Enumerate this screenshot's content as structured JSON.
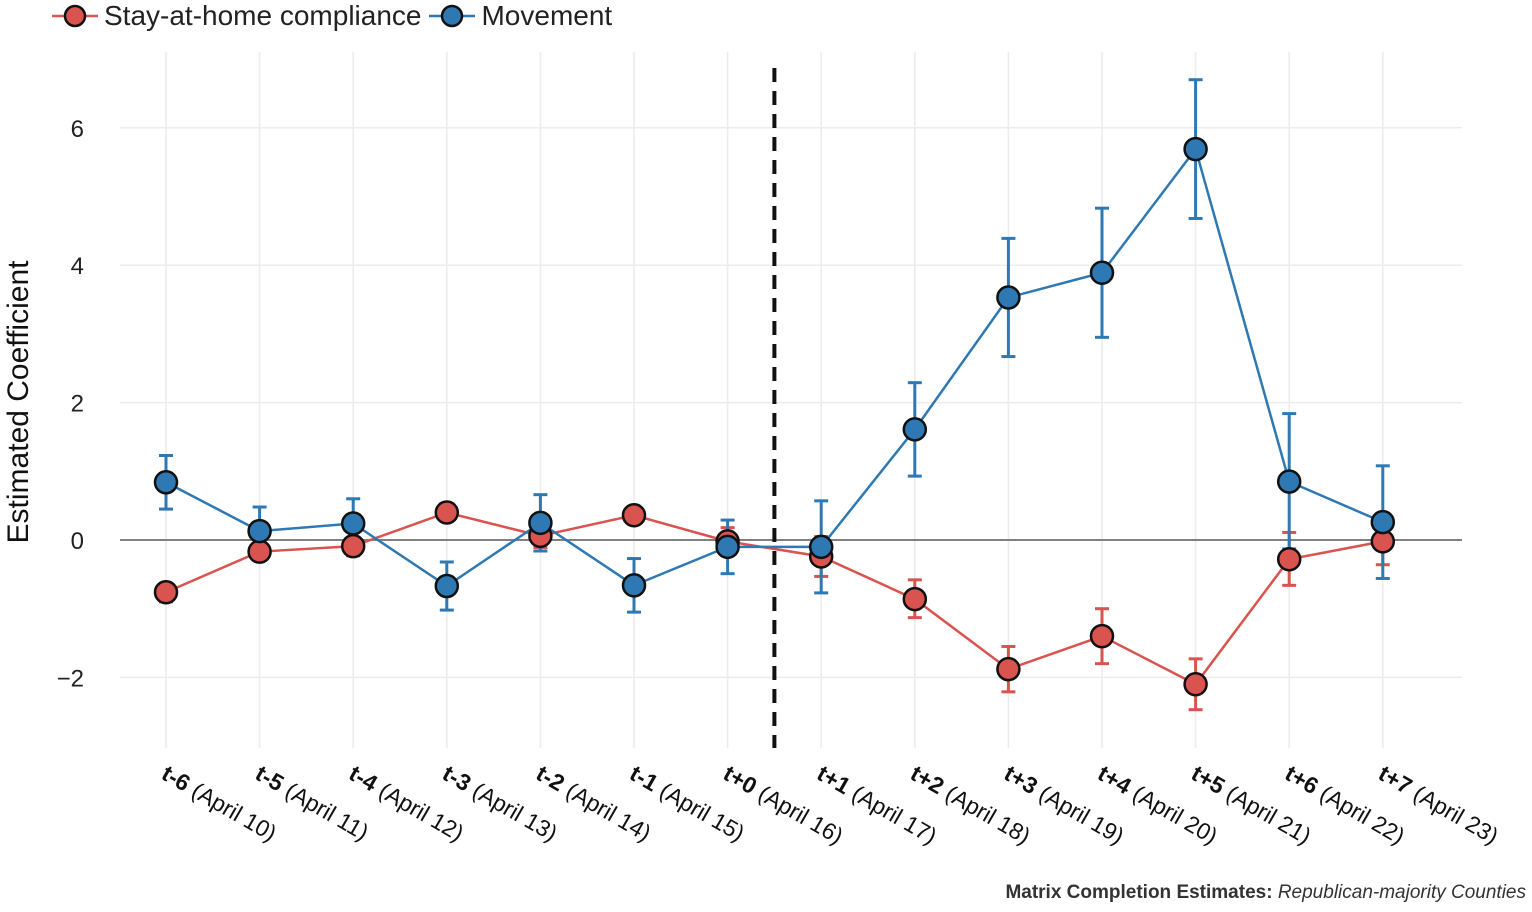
{
  "chart_data": {
    "type": "line",
    "ylabel": "Estimated Coefficient",
    "xlabel": "",
    "ylim": [
      -3.0,
      6.85
    ],
    "yticks": [
      -2,
      0,
      2,
      4,
      6
    ],
    "ytick_labels": [
      "−2",
      "0",
      "2",
      "4",
      "6"
    ],
    "vline_x_index": 6.5,
    "hline_y": 0,
    "grid": true,
    "legend_position": "top-left",
    "categories": [
      {
        "short": "t-6",
        "date": "(April 10)"
      },
      {
        "short": "t-5",
        "date": "(April 11)"
      },
      {
        "short": "t-4",
        "date": "(April 12)"
      },
      {
        "short": "t-3",
        "date": "(April 13)"
      },
      {
        "short": "t-2",
        "date": "(April 14)"
      },
      {
        "short": "t-1",
        "date": "(April 15)"
      },
      {
        "short": "t+0",
        "date": "(April 16)"
      },
      {
        "short": "t+1",
        "date": "(April 17)"
      },
      {
        "short": "t+2",
        "date": "(April 18)"
      },
      {
        "short": "t+3",
        "date": "(April 19)"
      },
      {
        "short": "t+4",
        "date": "(April 20)"
      },
      {
        "short": "t+5",
        "date": "(April 21)"
      },
      {
        "short": "t+6",
        "date": "(April 22)"
      },
      {
        "short": "t+7",
        "date": "(April 23)"
      }
    ],
    "series": [
      {
        "name": "Stay-at-home compliance",
        "color": "#d9534f",
        "values": [
          -0.76,
          -0.17,
          -0.09,
          0.4,
          0.06,
          0.36,
          -0.02,
          -0.24,
          -0.86,
          -1.88,
          -1.4,
          -2.1,
          -0.28,
          -0.02
        ],
        "lower": [
          -0.9,
          -0.27,
          -0.23,
          0.27,
          -0.11,
          0.25,
          -0.21,
          -0.53,
          -1.13,
          -2.21,
          -1.8,
          -2.47,
          -0.66,
          -0.36
        ],
        "upper": [
          -0.63,
          -0.06,
          0.04,
          0.53,
          0.22,
          0.48,
          0.18,
          0.05,
          -0.58,
          -1.55,
          -1.0,
          -1.73,
          0.11,
          0.33
        ]
      },
      {
        "name": "Movement",
        "color": "#2e79b3",
        "values": [
          0.84,
          0.13,
          0.24,
          -0.67,
          0.25,
          -0.66,
          -0.1,
          -0.1,
          1.61,
          3.53,
          3.89,
          5.69,
          0.85,
          0.26
        ],
        "lower": [
          0.45,
          -0.21,
          -0.11,
          -1.02,
          -0.16,
          -1.05,
          -0.49,
          -0.77,
          0.93,
          2.67,
          2.95,
          4.68,
          -0.13,
          -0.56
        ],
        "upper": [
          1.23,
          0.48,
          0.6,
          -0.32,
          0.66,
          -0.27,
          0.29,
          0.57,
          2.29,
          4.39,
          4.83,
          6.7,
          1.84,
          1.08
        ]
      }
    ]
  },
  "caption": {
    "bold": "Matrix Completion Estimates:",
    "italic": "Republican-majority Counties"
  }
}
